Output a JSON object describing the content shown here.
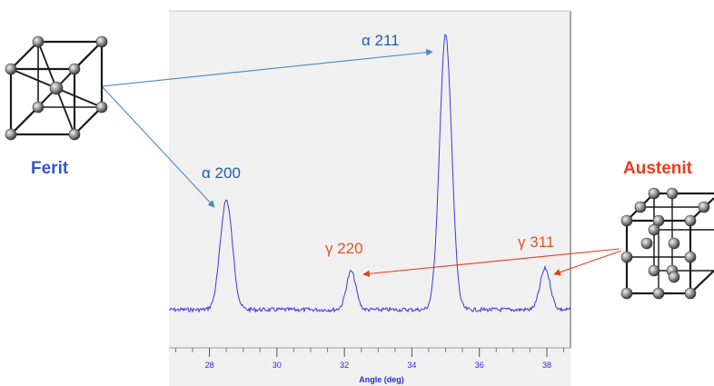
{
  "chart_data": {
    "type": "line",
    "xlabel": "Angle (deg)",
    "xlim": [
      26.8,
      38.7
    ],
    "xticks": [
      28,
      30,
      32,
      34,
      36,
      38
    ],
    "xtick_labels": [
      "28",
      "30",
      "32",
      "34",
      "36",
      "38"
    ],
    "y_visible": false,
    "grid": false,
    "series": [
      {
        "color": "#3b3bd6",
        "peaks": [
          {
            "x": 28.5,
            "height": 0.4,
            "width": 0.18
          },
          {
            "x": 32.2,
            "height": 0.14,
            "width": 0.14
          },
          {
            "x": 35.0,
            "height": 1.0,
            "width": 0.18
          },
          {
            "x": 37.95,
            "height": 0.15,
            "width": 0.15
          }
        ]
      }
    ]
  },
  "annotations": {
    "ferrite_name": "Ferit",
    "austenite_name": "Austenit",
    "peak_labels": [
      {
        "text": "α 211",
        "phase": "ferrite",
        "x": 35.0
      },
      {
        "text": "α 200",
        "phase": "ferrite",
        "x": 28.5
      },
      {
        "text": "γ 220",
        "phase": "austenite",
        "x": 32.2
      },
      {
        "text": "γ 311",
        "phase": "austenite",
        "x": 37.95
      }
    ]
  },
  "colors": {
    "ferrite": "#3355cc",
    "ferrite_label": "#1f5fa6",
    "austenite": "#e83c1e",
    "austenite_label": "#e0552a",
    "spectrum": "#3b3bd6",
    "plot_bg": "#f0f0f0",
    "ferrite_arrow": "#4a86c8",
    "axis_text": "#2a2ad0"
  },
  "icons": {
    "ferrite_cell": "bcc-unit-cell-icon",
    "austenite_cell": "fcc-unit-cell-icon"
  }
}
